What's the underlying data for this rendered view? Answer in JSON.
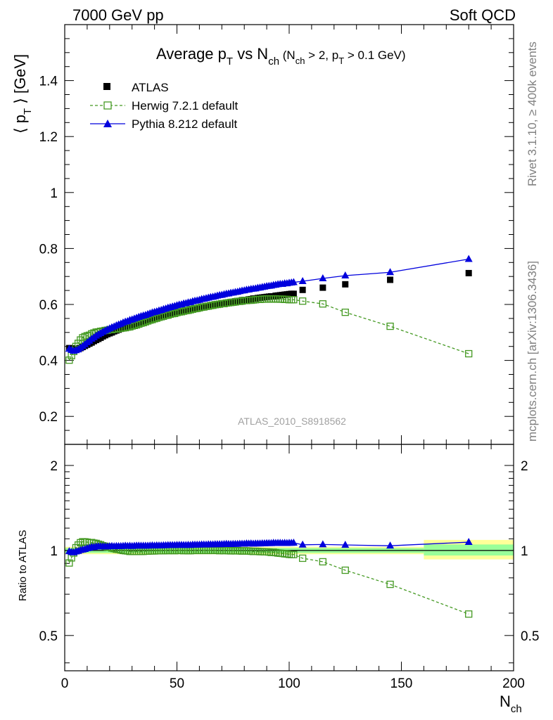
{
  "header": {
    "left": "7000 GeV pp",
    "right": "Soft QCD"
  },
  "side_labels": {
    "top": "Rivet 3.1.10, ≥ 400k events",
    "bottom": "mcplots.cern.ch [arXiv:1306.3436]"
  },
  "chart_data": {
    "type": "scatter",
    "title_parts": {
      "a": "Average p",
      "a_sub": "T",
      "b": " vs N",
      "b_sub": "ch",
      "c": " (N",
      "c_sub": "ch",
      "d": " > 2, p",
      "d_sub": "T",
      "e": " > 0.1 GeV)"
    },
    "watermark": "ATLAS_2010_S8918562",
    "xlabel": "N",
    "xlabel_sub": "ch",
    "ylabel_main": "⟨ p",
    "ylabel_main_sub": "T",
    "ylabel_main_end": " ⟩  [GeV]",
    "ylabel_ratio": "Ratio to ATLAS",
    "xlim": [
      0,
      200
    ],
    "ylim_main": [
      0.1,
      1.6
    ],
    "ylim_ratio": [
      0.375,
      2.375
    ],
    "x_ticks": [
      "0",
      "50",
      "100",
      "150",
      "200"
    ],
    "y_ticks_main": [
      "0.2",
      "0.4",
      "0.6",
      "0.8",
      "1",
      "1.2",
      "1.4"
    ],
    "y_ticks_ratio": [
      "0.5",
      "1",
      "2"
    ],
    "legend": [
      "ATLAS",
      "Herwig 7.2.1 default",
      "Pythia 8.212 default"
    ],
    "colors": {
      "atlas": "#000000",
      "herwig": "#449922",
      "pythia": "#0000dd",
      "band_outer": "#ffff99",
      "band_inner": "#99ff99"
    },
    "x": [
      2,
      3,
      4,
      5,
      6,
      7,
      8,
      9,
      10,
      11,
      12,
      13,
      14,
      15,
      16,
      17,
      18,
      19,
      20,
      21,
      22,
      23,
      24,
      25,
      26,
      27,
      28,
      29,
      30,
      31,
      32,
      33,
      34,
      35,
      36,
      37,
      38,
      39,
      40,
      41,
      42,
      43,
      44,
      45,
      46,
      47,
      48,
      49,
      50,
      51,
      52,
      53,
      54,
      55,
      56,
      57,
      58,
      59,
      60,
      61,
      62,
      63,
      64,
      65,
      66,
      67,
      68,
      69,
      70,
      71,
      72,
      73,
      74,
      75,
      76,
      77,
      78,
      79,
      80,
      81,
      82,
      83,
      84,
      85,
      86,
      87,
      88,
      89,
      90,
      91,
      92,
      93,
      94,
      95,
      96,
      97,
      98,
      99,
      100,
      101,
      102,
      106,
      115,
      125,
      145,
      180
    ],
    "series": [
      {
        "name": "ATLAS",
        "values": [
          0.444,
          0.443,
          0.441,
          0.44,
          0.441,
          0.444,
          0.448,
          0.452,
          0.456,
          0.46,
          0.464,
          0.469,
          0.473,
          0.477,
          0.481,
          0.486,
          0.49,
          0.494,
          0.497,
          0.5,
          0.504,
          0.507,
          0.51,
          0.513,
          0.516,
          0.518,
          0.521,
          0.524,
          0.527,
          0.529,
          0.531,
          0.534,
          0.537,
          0.539,
          0.541,
          0.544,
          0.546,
          0.548,
          0.551,
          0.552,
          0.555,
          0.557,
          0.559,
          0.561,
          0.563,
          0.565,
          0.567,
          0.569,
          0.571,
          0.573,
          0.574,
          0.577,
          0.578,
          0.58,
          0.582,
          0.583,
          0.585,
          0.586,
          0.588,
          0.59,
          0.591,
          0.593,
          0.594,
          0.596,
          0.597,
          0.598,
          0.6,
          0.602,
          0.603,
          0.604,
          0.605,
          0.607,
          0.609,
          0.609,
          0.611,
          0.612,
          0.613,
          0.615,
          0.616,
          0.616,
          0.618,
          0.619,
          0.621,
          0.621,
          0.623,
          0.624,
          0.625,
          0.626,
          0.627,
          0.628,
          0.629,
          0.629,
          0.631,
          0.632,
          0.633,
          0.634,
          0.635,
          0.636,
          0.637,
          0.638,
          0.638,
          0.652,
          0.66,
          0.672,
          0.688,
          0.712
        ]
      },
      {
        "name": "Herwig 7.2.1 default",
        "values": [
          0.401,
          0.417,
          0.432,
          0.45,
          0.461,
          0.473,
          0.481,
          0.485,
          0.488,
          0.49,
          0.495,
          0.498,
          0.501,
          0.502,
          0.504,
          0.505,
          0.507,
          0.508,
          0.51,
          0.51,
          0.512,
          0.512,
          0.514,
          0.515,
          0.516,
          0.517,
          0.519,
          0.52,
          0.523,
          0.525,
          0.527,
          0.53,
          0.533,
          0.535,
          0.538,
          0.541,
          0.544,
          0.546,
          0.549,
          0.551,
          0.554,
          0.556,
          0.558,
          0.561,
          0.562,
          0.565,
          0.567,
          0.568,
          0.571,
          0.573,
          0.574,
          0.576,
          0.578,
          0.579,
          0.581,
          0.583,
          0.585,
          0.586,
          0.588,
          0.59,
          0.591,
          0.593,
          0.594,
          0.596,
          0.597,
          0.599,
          0.6,
          0.601,
          0.603,
          0.603,
          0.605,
          0.606,
          0.607,
          0.608,
          0.609,
          0.611,
          0.611,
          0.612,
          0.614,
          0.614,
          0.615,
          0.615,
          0.616,
          0.617,
          0.618,
          0.618,
          0.619,
          0.619,
          0.62,
          0.62,
          0.619,
          0.62,
          0.62,
          0.619,
          0.619,
          0.619,
          0.618,
          0.618,
          0.617,
          0.617,
          0.617,
          0.612,
          0.602,
          0.572,
          0.522,
          0.424
        ]
      },
      {
        "name": "Pythia 8.212 default",
        "values": [
          0.441,
          0.437,
          0.434,
          0.436,
          0.439,
          0.445,
          0.451,
          0.457,
          0.464,
          0.47,
          0.477,
          0.482,
          0.488,
          0.493,
          0.497,
          0.502,
          0.506,
          0.51,
          0.514,
          0.518,
          0.521,
          0.525,
          0.528,
          0.531,
          0.535,
          0.538,
          0.54,
          0.544,
          0.546,
          0.549,
          0.552,
          0.555,
          0.558,
          0.56,
          0.562,
          0.565,
          0.568,
          0.571,
          0.573,
          0.575,
          0.578,
          0.58,
          0.583,
          0.585,
          0.588,
          0.59,
          0.592,
          0.594,
          0.597,
          0.599,
          0.6,
          0.603,
          0.604,
          0.607,
          0.608,
          0.611,
          0.613,
          0.614,
          0.616,
          0.619,
          0.62,
          0.622,
          0.624,
          0.626,
          0.627,
          0.629,
          0.631,
          0.633,
          0.634,
          0.636,
          0.638,
          0.639,
          0.641,
          0.642,
          0.644,
          0.645,
          0.647,
          0.649,
          0.65,
          0.652,
          0.653,
          0.655,
          0.656,
          0.657,
          0.659,
          0.66,
          0.662,
          0.663,
          0.665,
          0.666,
          0.667,
          0.669,
          0.67,
          0.672,
          0.673,
          0.673,
          0.675,
          0.675,
          0.677,
          0.678,
          0.679,
          0.683,
          0.693,
          0.703,
          0.715,
          0.762
        ]
      }
    ],
    "ratio_band": [
      {
        "x": [
          0,
          160
        ],
        "outer": [
          0.97,
          1.03
        ],
        "inner": [
          0.98,
          1.02
        ]
      },
      {
        "x": [
          160,
          200
        ],
        "outer": [
          0.93,
          1.09
        ],
        "inner": [
          0.96,
          1.05
        ]
      }
    ]
  }
}
